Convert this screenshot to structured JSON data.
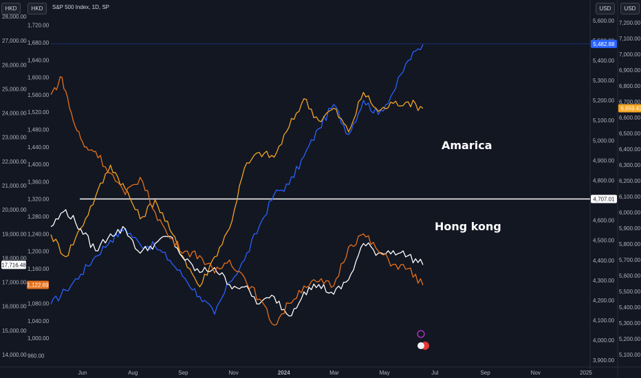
{
  "toolbar": {
    "left_currency_1": "HKD",
    "left_currency_2": "HKD",
    "symbol": "S&P 500 Index, 1D, SP",
    "right_currency_1": "USD",
    "right_currency_2": "USD"
  },
  "annotations": {
    "america": "Amarica",
    "hongkong": "Hong kong"
  },
  "chart_data": {
    "type": "line",
    "x_ticks": [
      "Jun",
      "Aug",
      "Sep",
      "Nov",
      "2024",
      "Mar",
      "May",
      "Jul",
      "Sep",
      "Nov",
      "2025"
    ],
    "left_axis_outer": {
      "unit": "HKD",
      "ticks": [
        "28,000.00",
        "27,000.00",
        "26,000.00",
        "25,000.00",
        "24,000.00",
        "23,000.00",
        "22,000.00",
        "21,000.00",
        "20,000.00",
        "19,000.00",
        "18,000.00",
        "17,000.00",
        "16,000.00",
        "15,000.00",
        "14,000.00"
      ],
      "range": [
        13600,
        28000
      ]
    },
    "left_axis_inner": {
      "unit": "HKD",
      "ticks": [
        "1,720.00",
        "1,680.00",
        "1,640.00",
        "1,600.00",
        "1,560.00",
        "1,520.00",
        "1,480.00",
        "1,440.00",
        "1,400.00",
        "1,360.00",
        "1,320.00",
        "1,280.00",
        "1,240.00",
        "1,200.00",
        "1,160.00",
        "1,120.00",
        "1,080.00",
        "1,040.00",
        "1,000.00",
        "960.00"
      ],
      "range": [
        940,
        1740
      ]
    },
    "right_axis_inner": {
      "unit": "USD",
      "ticks": [
        "5,600.00",
        "5,500.00",
        "5,400.00",
        "5,300.00",
        "5,200.00",
        "5,100.00",
        "5,000.00",
        "4,900.00",
        "4,800.00",
        "4,700.00",
        "4,600.00",
        "4,500.00",
        "4,400.00",
        "4,300.00",
        "4,200.00",
        "4,100.00",
        "4,000.00",
        "3,900.00"
      ],
      "range": [
        3880,
        5620
      ]
    },
    "right_axis_outer": {
      "unit": "USD",
      "ticks": [
        "7,200.00",
        "7,100.00",
        "7,000.00",
        "6,900.00",
        "6,800.00",
        "6,700.00",
        "6,600.00",
        "6,500.00",
        "6,400.00",
        "6,300.00",
        "6,200.00",
        "6,100.00",
        "6,000.00",
        "5,900.00",
        "5,800.00",
        "5,700.00",
        "5,600.00",
        "5,500.00",
        "5,400.00",
        "5,300.00",
        "5,200.00",
        "5,100.00"
      ],
      "range": [
        5040,
        7240
      ]
    },
    "price_labels": [
      {
        "text": "5,482.88",
        "color": "#2962ff",
        "axis": "right_inner",
        "value": 5482.88
      },
      {
        "text": "6,659.42",
        "color": "#f5a623",
        "axis": "right_outer",
        "value": 6659.42
      },
      {
        "text": "4,707.01",
        "color": "#ffffff",
        "axis": "right_inner",
        "value": 4707.01
      },
      {
        "text": "17,716.48",
        "color": "#ffffff",
        "axis": "left_outer",
        "value": 17716.48
      },
      {
        "text": "1,122.69",
        "color": "#e6711c",
        "axis": "left_inner",
        "value": 1122.69
      }
    ],
    "horizontal_line": {
      "value": 4707.01,
      "axis": "right_inner",
      "color": "#ffffff"
    },
    "series": [
      {
        "color": "#2962ff",
        "axis": "right_inner",
        "t": [
          0.0,
          0.04,
          0.08,
          0.12,
          0.16,
          0.2,
          0.24,
          0.28,
          0.32,
          0.36,
          0.4,
          0.44,
          0.48,
          0.52,
          0.56,
          0.6,
          0.64,
          0.68,
          0.72,
          0.76,
          0.8,
          0.84,
          0.88,
          0.92,
          0.96,
          1.0
        ],
        "values": [
          4180,
          4250,
          4330,
          4420,
          4500,
          4560,
          4480,
          4470,
          4400,
          4310,
          4220,
          4130,
          4290,
          4400,
          4570,
          4730,
          4780,
          4920,
          5060,
          5180,
          5030,
          5200,
          5130,
          5240,
          5400,
          5480
        ]
      },
      {
        "color": "#f5a623",
        "axis": "right_outer",
        "t": [
          0.0,
          0.04,
          0.08,
          0.12,
          0.16,
          0.2,
          0.24,
          0.28,
          0.32,
          0.36,
          0.4,
          0.44,
          0.48,
          0.52,
          0.56,
          0.6,
          0.64,
          0.68,
          0.72,
          0.76,
          0.8,
          0.84,
          0.88,
          0.92,
          0.96,
          1.0
        ],
        "values": [
          5860,
          5720,
          5900,
          6100,
          6300,
          6150,
          5960,
          6080,
          5890,
          5700,
          5530,
          5720,
          5900,
          6280,
          6380,
          6350,
          6540,
          6720,
          6580,
          6660,
          6510,
          6760,
          6640,
          6690,
          6700,
          6659
        ]
      },
      {
        "color": "#ffffff",
        "axis": "left_outer",
        "t": [
          0.0,
          0.04,
          0.08,
          0.12,
          0.16,
          0.2,
          0.24,
          0.28,
          0.32,
          0.36,
          0.4,
          0.44,
          0.48,
          0.52,
          0.56,
          0.6,
          0.64,
          0.68,
          0.72,
          0.76,
          0.8,
          0.84,
          0.88,
          0.92,
          0.96,
          1.0
        ],
        "values": [
          19300,
          20000,
          19200,
          18300,
          19000,
          19200,
          18200,
          18600,
          18900,
          17900,
          17400,
          17600,
          16900,
          16800,
          16100,
          16400,
          15600,
          16600,
          16900,
          16500,
          17100,
          18600,
          18200,
          18300,
          18100,
          17716
        ]
      },
      {
        "color": "#e6711c",
        "axis": "left_inner",
        "t": [
          0.0,
          0.03,
          0.06,
          0.09,
          0.12,
          0.16,
          0.2,
          0.24,
          0.28,
          0.32,
          0.36,
          0.4,
          0.44,
          0.48,
          0.52,
          0.56,
          0.6,
          0.64,
          0.68,
          0.72,
          0.76,
          0.8,
          0.84,
          0.88,
          0.92,
          0.96,
          1.0
        ],
        "values": [
          1560,
          1600,
          1500,
          1440,
          1430,
          1380,
          1330,
          1370,
          1290,
          1230,
          1200,
          1190,
          1150,
          1180,
          1140,
          1090,
          1030,
          1080,
          1120,
          1130,
          1120,
          1210,
          1240,
          1200,
          1170,
          1160,
          1122
        ]
      }
    ]
  }
}
